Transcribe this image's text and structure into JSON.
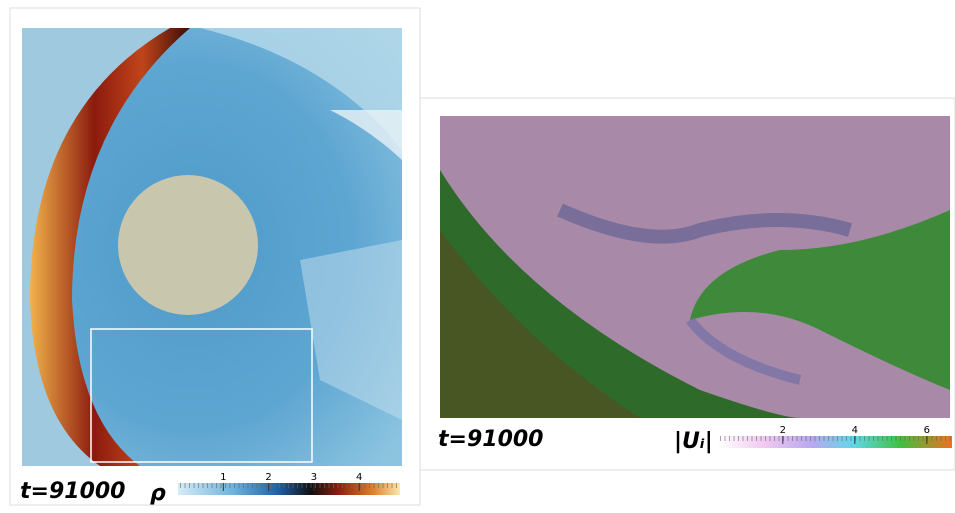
{
  "panels": [
    {
      "time_label": "t=91000",
      "quantity": "ρ",
      "colorbar": {
        "lim": [
          0,
          4.9
        ],
        "ticks": [
          1,
          2,
          3,
          4
        ]
      }
    },
    {
      "time_label": "t=91000",
      "quantity": "|Uᵢ|",
      "colorbar": {
        "lim": [
          0.2,
          6.7
        ],
        "ticks": [
          2,
          4,
          6
        ]
      }
    }
  ]
}
